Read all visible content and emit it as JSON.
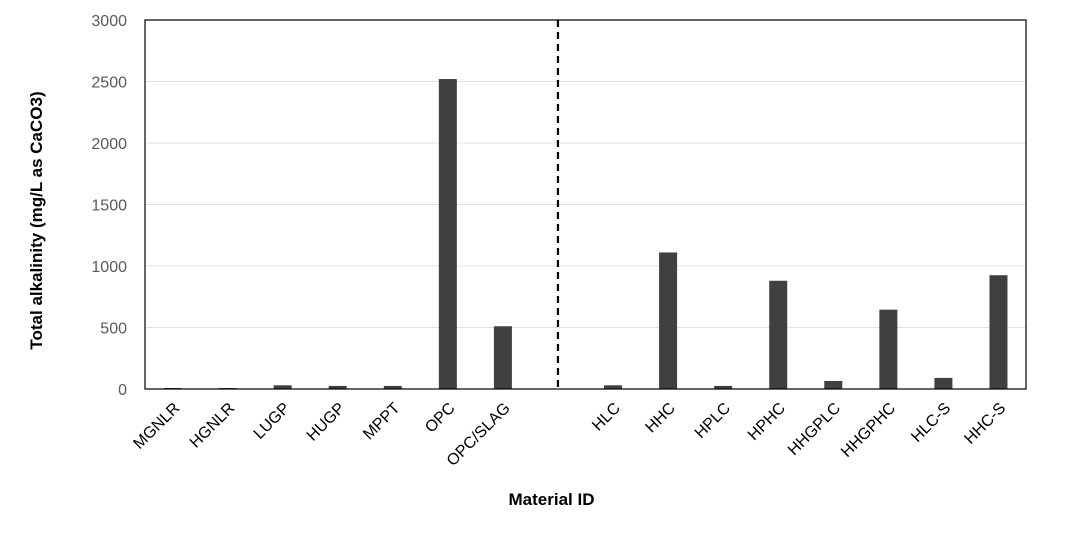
{
  "chart_data": {
    "type": "bar",
    "xlabel": "Material ID",
    "ylabel": "Total alkalinity (mg/L as CaCO3)",
    "ylim": [
      0,
      3000
    ],
    "yticks": [
      0,
      500,
      1000,
      1500,
      2000,
      2500,
      3000
    ],
    "grid": true,
    "bar_color": "#404040",
    "categories": [
      "MGNLR",
      "HGNLR",
      "LUGP",
      "HUGP",
      "MPPT",
      "OPC",
      "OPC/SLAG",
      "",
      "HLC",
      "HHC",
      "HPLC",
      "HPHC",
      "HHGPLC",
      "HHGPHC",
      "HLC-S",
      "HHC-S"
    ],
    "values": [
      5,
      5,
      30,
      25,
      25,
      2520,
      510,
      null,
      30,
      1110,
      25,
      880,
      65,
      645,
      90,
      925
    ],
    "divider_after_category_index": 7
  }
}
